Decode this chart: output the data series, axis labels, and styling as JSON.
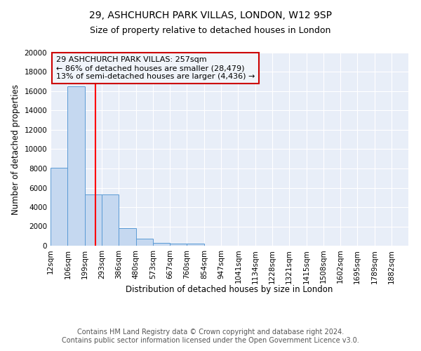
{
  "title": "29, ASHCHURCH PARK VILLAS, LONDON, W12 9SP",
  "subtitle": "Size of property relative to detached houses in London",
  "xlabel": "Distribution of detached houses by size in London",
  "ylabel": "Number of detached properties",
  "bar_edges": [
    12,
    106,
    199,
    293,
    386,
    480,
    573,
    667,
    760,
    854,
    947,
    1041,
    1134,
    1228,
    1321,
    1415,
    1508,
    1602,
    1695,
    1789,
    1882
  ],
  "bar_heights": [
    8100,
    16500,
    5300,
    5300,
    1850,
    750,
    320,
    250,
    200,
    0,
    0,
    0,
    0,
    0,
    0,
    0,
    0,
    0,
    0,
    0
  ],
  "bar_color": "#c5d8f0",
  "bar_edge_color": "#5b9bd5",
  "red_line_x": 257,
  "annotation_line1": "29 ASHCHURCH PARK VILLAS: 257sqm",
  "annotation_line2": "← 86% of detached houses are smaller (28,479)",
  "annotation_line3": "13% of semi-detached houses are larger (4,436) →",
  "annotation_box_facecolor": "#f0f4fa",
  "annotation_box_edgecolor": "#cc0000",
  "ylim": [
    0,
    20000
  ],
  "yticks": [
    0,
    2000,
    4000,
    6000,
    8000,
    10000,
    12000,
    14000,
    16000,
    18000,
    20000
  ],
  "grid_color": "#ffffff",
  "plot_bg_color": "#e8eef8",
  "footnote": "Contains HM Land Registry data © Crown copyright and database right 2024.\nContains public sector information licensed under the Open Government Licence v3.0.",
  "title_fontsize": 10,
  "subtitle_fontsize": 9,
  "label_fontsize": 8.5,
  "tick_fontsize": 7.5,
  "annotation_fontsize": 8,
  "footnote_fontsize": 7
}
